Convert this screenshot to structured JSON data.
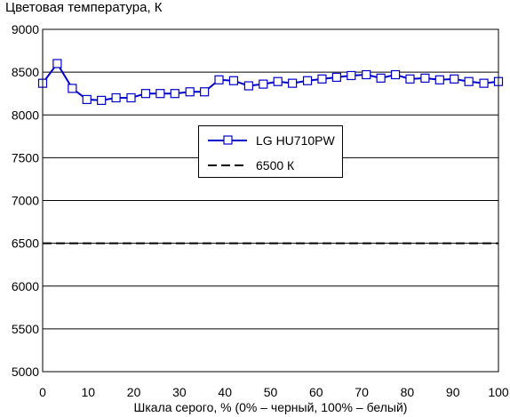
{
  "chart_data": {
    "type": "line",
    "title": "Цветовая температура, К",
    "xlabel": "Шкала серого, % (0% – черный, 100% – белый)",
    "ylabel": "",
    "xlim": [
      0,
      100
    ],
    "ylim": [
      5000,
      9000
    ],
    "x_ticks": [
      0,
      10,
      20,
      30,
      40,
      50,
      60,
      70,
      80,
      90,
      100
    ],
    "y_ticks": [
      5000,
      5500,
      6000,
      6500,
      7000,
      7500,
      8000,
      8500,
      9000
    ],
    "grid": "horizontal",
    "legend_position": "center-right",
    "series": [
      {
        "name": "LG HU710PW",
        "color": "#0000cc",
        "marker": "square",
        "x": [
          0,
          3.2,
          6.5,
          9.7,
          12.9,
          16.1,
          19.4,
          22.6,
          25.8,
          29.0,
          32.3,
          35.5,
          38.7,
          41.9,
          45.2,
          48.4,
          51.6,
          54.8,
          58.1,
          61.3,
          64.5,
          67.7,
          71.0,
          74.2,
          77.4,
          80.6,
          83.9,
          87.1,
          90.3,
          93.5,
          96.8,
          100
        ],
        "y": [
          8370,
          8600,
          8310,
          8180,
          8170,
          8200,
          8200,
          8250,
          8250,
          8250,
          8270,
          8270,
          8410,
          8400,
          8340,
          8360,
          8390,
          8370,
          8400,
          8420,
          8440,
          8460,
          8470,
          8430,
          8470,
          8420,
          8430,
          8410,
          8420,
          8390,
          8370,
          8390
        ]
      },
      {
        "name": "6500 К",
        "color": "#000000",
        "style": "dashed",
        "x": [
          0,
          100
        ],
        "y": [
          6500,
          6500
        ]
      }
    ]
  }
}
